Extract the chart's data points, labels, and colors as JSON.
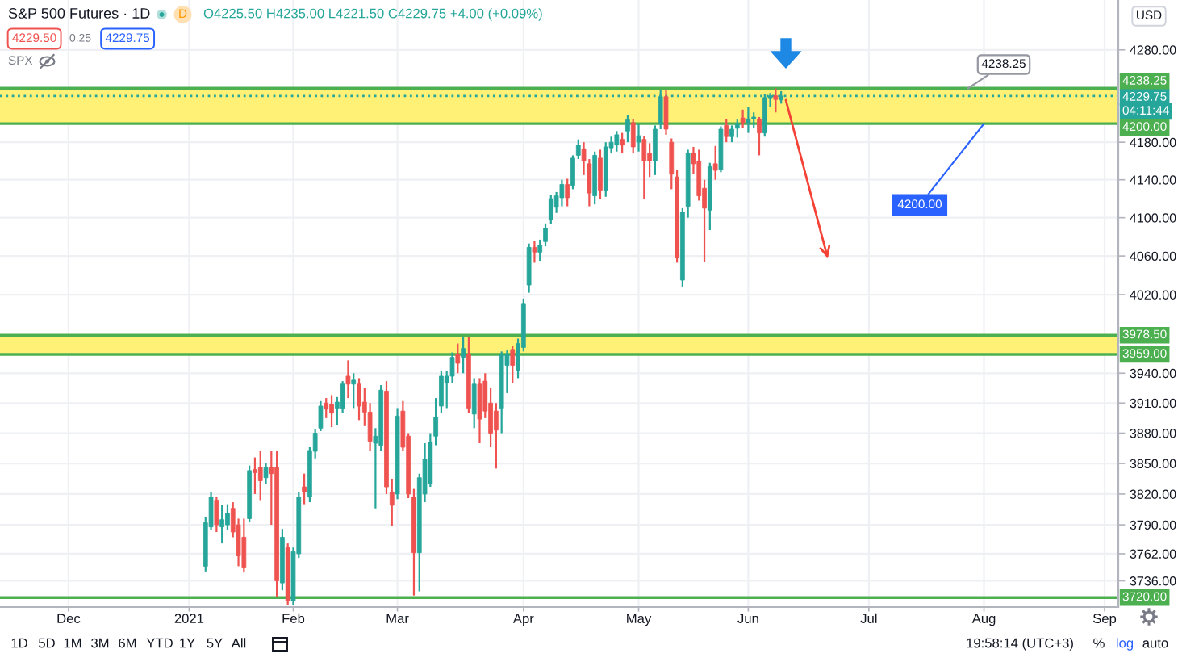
{
  "chart_data": {
    "type": "candlestick",
    "title": "S&P 500 Futures · 1D",
    "categories": [
      null,
      null,
      null,
      null,
      null,
      null,
      null,
      null,
      null,
      null,
      null,
      null,
      "Dec",
      null,
      null,
      null,
      null,
      null,
      null,
      null,
      null,
      null,
      null,
      null,
      null,
      null,
      null,
      null,
      null,
      null,
      null,
      null,
      null,
      null,
      "2021",
      null,
      null,
      null,
      null,
      null,
      null,
      null,
      null,
      null,
      null,
      null,
      null,
      null,
      null,
      null,
      null,
      null,
      null,
      "Feb",
      null,
      null,
      null,
      null,
      null,
      null,
      null,
      null,
      null,
      null,
      null,
      null,
      null,
      null,
      null,
      null,
      null,
      null,
      "Mar",
      null,
      null,
      null,
      null,
      null,
      null,
      null,
      null,
      null,
      null,
      null,
      null,
      null,
      null,
      null,
      null,
      null,
      null,
      null,
      null,
      null,
      null,
      "Apr",
      null,
      null,
      null,
      null,
      null,
      null,
      null,
      null,
      null,
      null,
      null,
      null,
      null,
      null,
      null,
      null,
      null,
      null,
      null,
      null,
      "May",
      null,
      null,
      null,
      null,
      null,
      null,
      null,
      null,
      null,
      null,
      null,
      null,
      null,
      null,
      null,
      null,
      null,
      null,
      null,
      "Jun",
      null,
      null,
      null,
      null,
      null,
      null,
      null,
      null,
      null,
      null,
      null,
      null,
      null,
      null,
      null,
      null,
      null,
      null,
      null,
      null,
      null,
      "Jul",
      null,
      null,
      null,
      null,
      null,
      null,
      null,
      null,
      null,
      null,
      null,
      null,
      null,
      null,
      null,
      null,
      null,
      null,
      null,
      null,
      "Aug",
      null,
      null,
      null,
      null,
      null,
      null,
      null,
      null,
      null,
      null,
      null,
      null,
      null,
      null,
      null,
      null,
      null,
      null,
      null,
      null,
      null,
      "Sep",
      null,
      null
    ],
    "ohlc": [
      null,
      null,
      null,
      null,
      null,
      null,
      null,
      null,
      null,
      null,
      null,
      null,
      null,
      null,
      null,
      null,
      null,
      null,
      null,
      null,
      null,
      null,
      null,
      null,
      null,
      null,
      null,
      null,
      null,
      null,
      null,
      null,
      null,
      null,
      null,
      null,
      null,
      [
        3750,
        3798,
        3745,
        3792
      ],
      [
        3788,
        3822,
        3785,
        3817
      ],
      [
        3814,
        3817,
        3783,
        3790
      ],
      [
        3788,
        3809,
        3772,
        3795
      ],
      [
        3790,
        3810,
        3785,
        3801
      ],
      [
        3806,
        3812,
        3778,
        3783
      ],
      [
        3790,
        3796,
        3750,
        3760
      ],
      [
        3778,
        3796,
        3744,
        3749
      ],
      [
        3796,
        3848,
        3793,
        3843
      ],
      [
        3844,
        3856,
        3820,
        3841
      ],
      [
        3846,
        3862,
        3814,
        3833
      ],
      [
        3836,
        3850,
        3830,
        3846
      ],
      [
        3846,
        3862,
        3790,
        3840
      ],
      [
        3846,
        3862,
        3721,
        3736
      ],
      [
        3734,
        3786,
        3727,
        3778
      ],
      [
        3768,
        3772,
        3713,
        3717
      ],
      [
        3717,
        3768,
        3713,
        3764
      ],
      [
        3762,
        3822,
        3758,
        3817
      ],
      [
        3827,
        3840,
        3810,
        3822
      ],
      [
        3817,
        3866,
        3812,
        3862
      ],
      [
        3862,
        3884,
        3855,
        3880
      ],
      [
        3885,
        3912,
        3882,
        3907
      ],
      [
        3910,
        3915,
        3895,
        3904
      ],
      [
        3909,
        3918,
        3886,
        3900
      ],
      [
        3905,
        3916,
        3888,
        3911
      ],
      [
        3905,
        3932,
        3900,
        3929
      ],
      [
        3937,
        3953,
        3915,
        3929
      ],
      [
        3929,
        3940,
        3905,
        3933
      ],
      [
        3929,
        3935,
        3893,
        3907
      ],
      [
        3911,
        3925,
        3887,
        3901
      ],
      [
        3901,
        3910,
        3862,
        3872
      ],
      [
        3870,
        3885,
        3806,
        3877
      ],
      [
        3868,
        3928,
        3862,
        3923
      ],
      [
        3922,
        3932,
        3820,
        3827
      ],
      [
        3822,
        3835,
        3789,
        3809
      ],
      [
        3820,
        3905,
        3815,
        3897
      ],
      [
        3902,
        3912,
        3862,
        3866
      ],
      [
        3877,
        3880,
        3816,
        3820
      ],
      [
        3817,
        3825,
        3722,
        3763
      ],
      [
        3763,
        3840,
        3726,
        3836
      ],
      [
        3820,
        3870,
        3812,
        3854
      ],
      [
        3830,
        3880,
        3827,
        3871
      ],
      [
        3877,
        3915,
        3868,
        3896
      ],
      [
        3907,
        3942,
        3900,
        3937
      ],
      [
        3930,
        3942,
        3905,
        3937
      ],
      [
        3937,
        3961,
        3930,
        3956
      ],
      [
        3959,
        3970,
        3940,
        3950
      ],
      [
        3956,
        3977,
        3940,
        3965
      ],
      [
        3959,
        3977,
        3900,
        3905
      ],
      [
        3899,
        3935,
        3885,
        3929
      ],
      [
        3929,
        3935,
        3870,
        3894
      ],
      [
        3932,
        3940,
        3895,
        3902
      ],
      [
        3910,
        3925,
        3866,
        3880
      ],
      [
        3902,
        3910,
        3845,
        3883
      ],
      [
        3905,
        3962,
        3880,
        3959
      ],
      [
        3948,
        3963,
        3920,
        3959
      ],
      [
        3964,
        3968,
        3930,
        3948
      ],
      [
        3943,
        3975,
        3935,
        3970
      ],
      [
        3966,
        4016,
        3962,
        4011
      ],
      [
        4030,
        4073,
        4022,
        4069
      ],
      [
        4069,
        4076,
        4053,
        4064
      ],
      [
        4064,
        4077,
        4055,
        4071
      ],
      [
        4075,
        4094,
        4070,
        4089
      ],
      [
        4098,
        4124,
        4093,
        4120
      ],
      [
        4111,
        4127,
        4105,
        4123
      ],
      [
        4121,
        4140,
        4112,
        4135
      ],
      [
        4135,
        4141,
        4112,
        4121
      ],
      [
        4134,
        4166,
        4130,
        4163
      ],
      [
        4166,
        4183,
        4162,
        4177
      ],
      [
        4173,
        4180,
        4145,
        4160
      ],
      [
        4157,
        4162,
        4112,
        4126
      ],
      [
        4123,
        4170,
        4114,
        4166
      ],
      [
        4163,
        4172,
        4120,
        4129
      ],
      [
        4129,
        4180,
        4122,
        4175
      ],
      [
        4174,
        4186,
        4168,
        4180
      ],
      [
        4177,
        4192,
        4170,
        4188
      ],
      [
        4183,
        4190,
        4168,
        4177
      ],
      [
        4192,
        4209,
        4180,
        4204
      ],
      [
        4201,
        4205,
        4168,
        4175
      ],
      [
        4180,
        4200,
        4170,
        4187
      ],
      [
        4183,
        4187,
        4120,
        4160
      ],
      [
        4168,
        4179,
        4143,
        4160
      ],
      [
        4160,
        4198,
        4145,
        4194
      ],
      [
        4200,
        4236,
        4194,
        4229
      ],
      [
        4229,
        4236,
        4188,
        4194
      ],
      [
        4180,
        4184,
        4130,
        4146
      ],
      [
        4143,
        4150,
        4053,
        4058
      ],
      [
        4035,
        4110,
        4028,
        4106
      ],
      [
        4112,
        4172,
        4100,
        4168
      ],
      [
        4168,
        4175,
        4146,
        4157
      ],
      [
        4160,
        4172,
        4118,
        4123
      ],
      [
        4131,
        4140,
        4054,
        4110
      ],
      [
        4108,
        4158,
        4087,
        4154
      ],
      [
        4157,
        4176,
        4140,
        4150
      ],
      [
        4151,
        4197,
        4148,
        4194
      ],
      [
        4198,
        4205,
        4180,
        4186
      ],
      [
        4186,
        4198,
        4180,
        4194
      ],
      [
        4195,
        4205,
        4185,
        4200
      ],
      [
        4206,
        4215,
        4195,
        4201
      ],
      [
        4201,
        4218,
        4190,
        4205
      ],
      [
        4205,
        4212,
        4195,
        4207
      ],
      [
        4205,
        4207,
        4166,
        4190
      ],
      [
        4190,
        4232,
        4186,
        4228
      ],
      [
        4227,
        4233,
        4218,
        4230
      ],
      [
        4230,
        4238,
        4212,
        4226
      ],
      [
        4225.5,
        4235,
        4221.5,
        4229.75
      ],
      null,
      null,
      null,
      null,
      null,
      null,
      null,
      null,
      null,
      null,
      null,
      null,
      null,
      null,
      null,
      null,
      null,
      null,
      null,
      null,
      null,
      null,
      null,
      null,
      null,
      null,
      null,
      null,
      null,
      null,
      null,
      null,
      null,
      null,
      null,
      null,
      null,
      null,
      null,
      null,
      null,
      null,
      null,
      null,
      null,
      null,
      null,
      null,
      null,
      null,
      null,
      null,
      null,
      null,
      null,
      null,
      null,
      null,
      null,
      null,
      null
    ],
    "colors": [
      null,
      null,
      null,
      null,
      null,
      null,
      null,
      null,
      null,
      null,
      null,
      null,
      null,
      null,
      null,
      null,
      null,
      null,
      null,
      null,
      null,
      null,
      null,
      null,
      null,
      null,
      null,
      null,
      null,
      null,
      null,
      null,
      null,
      null,
      null,
      null,
      null,
      "#26a69a",
      "#26a69a",
      "#ef5350",
      "#26a69a",
      "#26a69a",
      "#ef5350",
      "#ef5350",
      "#ef5350",
      "#26a69a",
      "#ef5350",
      "#ef5350",
      "#26a69a",
      "#ef5350",
      "#ef5350",
      "#26a69a",
      "#ef5350",
      "#26a69a",
      "#26a69a",
      "#ef5350",
      "#26a69a",
      "#26a69a",
      "#26a69a",
      "#ef5350",
      "#ef5350",
      "#26a69a",
      "#26a69a",
      "#ef5350",
      "#26a69a",
      "#ef5350",
      "#ef5350",
      "#ef5350",
      "#26a69a",
      "#26a69a",
      "#ef5350",
      "#ef5350",
      "#26a69a",
      "#ef5350",
      "#ef5350",
      "#ef5350",
      "#26a69a",
      "#26a69a",
      "#26a69a",
      "#26a69a",
      "#26a69a",
      "#26a69a",
      "#26a69a",
      "#ef5350",
      "#26a69a",
      "#ef5350",
      "#26a69a",
      "#ef5350",
      "#ef5350",
      "#ef5350",
      "#ef5350",
      "#26a69a",
      "#26a69a",
      "#ef5350",
      "#26a69a",
      "#26a69a",
      "#26a69a",
      "#ef5350",
      "#26a69a",
      "#26a69a",
      "#26a69a",
      "#26a69a",
      "#26a69a",
      "#ef5350",
      "#26a69a",
      "#26a69a",
      "#ef5350",
      "#ef5350",
      "#26a69a",
      "#ef5350",
      "#26a69a",
      "#26a69a",
      "#26a69a",
      "#ef5350",
      "#26a69a",
      "#ef5350",
      "#26a69a",
      "#ef5350",
      "#ef5350",
      "#26a69a",
      "#26a69a",
      "#ef5350",
      "#ef5350",
      "#ef5350",
      "#26a69a",
      "#26a69a",
      "#ef5350",
      "#ef5350",
      "#ef5350",
      "#26a69a",
      "#ef5350",
      "#26a69a",
      "#ef5350",
      "#26a69a",
      "#26a69a",
      "#ef5350",
      "#26a69a",
      "#26a69a",
      "#ef5350",
      "#26a69a",
      "#26a69a",
      "#ef5350",
      "#26a69a",
      null,
      null,
      null,
      null,
      null,
      null,
      null,
      null,
      null,
      null,
      null,
      null,
      null,
      null,
      null,
      null,
      null,
      null,
      null,
      null,
      null,
      null,
      null,
      null,
      null,
      null,
      null,
      null,
      null,
      null,
      null,
      null,
      null,
      null,
      null,
      null,
      null,
      null,
      null,
      null,
      null,
      null,
      null,
      null,
      null,
      null,
      null,
      null,
      null,
      null,
      null,
      null,
      null,
      null,
      null,
      null,
      null,
      null,
      null,
      null,
      null
    ],
    "log": true,
    "ylim": [
      3711,
      4335
    ],
    "yticks": [
      {
        "value": 3736,
        "label": "3736.00"
      },
      {
        "value": 3762,
        "label": "3762.00"
      },
      {
        "value": 3790,
        "label": "3790.00"
      },
      {
        "value": 3820,
        "label": "3820.00"
      },
      {
        "value": 3850,
        "label": "3850.00"
      },
      {
        "value": 3880,
        "label": "3880.00"
      },
      {
        "value": 3910,
        "label": "3910.00"
      },
      {
        "value": 3940,
        "label": "3940.00"
      },
      {
        "value": 4020,
        "label": "4020.00"
      },
      {
        "value": 4060,
        "label": "4060.00"
      },
      {
        "value": 4100,
        "label": "4100.00"
      },
      {
        "value": 4140,
        "label": "4140.00"
      },
      {
        "value": 4180,
        "label": "4180.00"
      },
      {
        "value": 4280,
        "label": "4280.00"
      }
    ],
    "grid": true,
    "bands": [
      {
        "axis": "y",
        "from": 4200,
        "to": 4238.25,
        "color": "#fff176"
      },
      {
        "axis": "y",
        "from": 3959,
        "to": 3978.5,
        "color": "#fff176"
      }
    ],
    "ref_lines": [
      {
        "axis": "y",
        "value": 4238.25,
        "label": "4238.25",
        "color": "#4caf50"
      },
      {
        "axis": "y",
        "value": 4200,
        "label": "4200.00",
        "color": "#4caf50"
      },
      {
        "axis": "y",
        "value": 3978.5,
        "label": "3978.50",
        "color": "#4caf50"
      },
      {
        "axis": "y",
        "value": 3959,
        "label": "3959.00",
        "color": "#4caf50"
      },
      {
        "axis": "y",
        "value": 3720,
        "label": "3720.00",
        "color": "#4caf50"
      },
      {
        "axis": "y",
        "value": 4229.75,
        "label": "4229.75",
        "color": "#26a69a",
        "line_style": "dotted"
      }
    ],
    "annotations": [
      "D",
      "O4225.50 H4235.00 L4221.50 C4229.75 +4.00 (+0.09%)",
      "4229.50",
      "0.25",
      "4229.75",
      "SPX",
      {
        "text": "4238.25",
        "y": 4238.25
      },
      {
        "text": "4200.00",
        "x": "Aug",
        "y": 4200
      },
      "04:11:44",
      "1D",
      "5D",
      "1M",
      "3M",
      "6M",
      "YTD",
      "1Y",
      "5Y",
      "All",
      "19:58:14 (UTC+3)",
      "%",
      "log",
      "auto",
      "USD"
    ]
  }
}
